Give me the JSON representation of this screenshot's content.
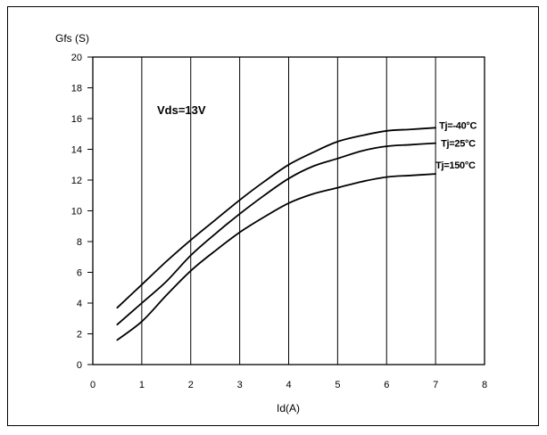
{
  "chart_data": {
    "type": "line",
    "title": "",
    "xlabel": "Id(A)",
    "ylabel": "Gfs (S)",
    "xlim": [
      0,
      8
    ],
    "ylim": [
      0,
      20
    ],
    "x_ticks": [
      0,
      1,
      2,
      3,
      4,
      5,
      6,
      7,
      8
    ],
    "y_ticks": [
      0,
      2,
      4,
      6,
      8,
      10,
      12,
      14,
      16,
      18,
      20
    ],
    "grid": "vertical",
    "annotation": "Vds=13V",
    "series": [
      {
        "name": "Tj=-40°C",
        "x": [
          0.5,
          1,
          1.5,
          2,
          2.5,
          3,
          3.5,
          4,
          4.5,
          5,
          5.5,
          6,
          6.5,
          7
        ],
        "y": [
          3.7,
          5.2,
          6.7,
          8.1,
          9.4,
          10.7,
          11.9,
          13.0,
          13.8,
          14.5,
          14.9,
          15.2,
          15.3,
          15.4
        ]
      },
      {
        "name": "Tj=25°C",
        "x": [
          0.5,
          1,
          1.5,
          2,
          2.5,
          3,
          3.5,
          4,
          4.5,
          5,
          5.5,
          6,
          6.5,
          7
        ],
        "y": [
          2.6,
          4.0,
          5.4,
          7.1,
          8.5,
          9.8,
          11.0,
          12.1,
          12.9,
          13.4,
          13.9,
          14.2,
          14.3,
          14.4
        ]
      },
      {
        "name": "Tj=150°C",
        "x": [
          0.5,
          1,
          1.5,
          2,
          2.5,
          3,
          3.5,
          4,
          4.5,
          5,
          5.5,
          6,
          6.5,
          7
        ],
        "y": [
          1.6,
          2.8,
          4.5,
          6.1,
          7.4,
          8.6,
          9.6,
          10.5,
          11.1,
          11.5,
          11.9,
          12.2,
          12.3,
          12.4
        ]
      }
    ]
  }
}
